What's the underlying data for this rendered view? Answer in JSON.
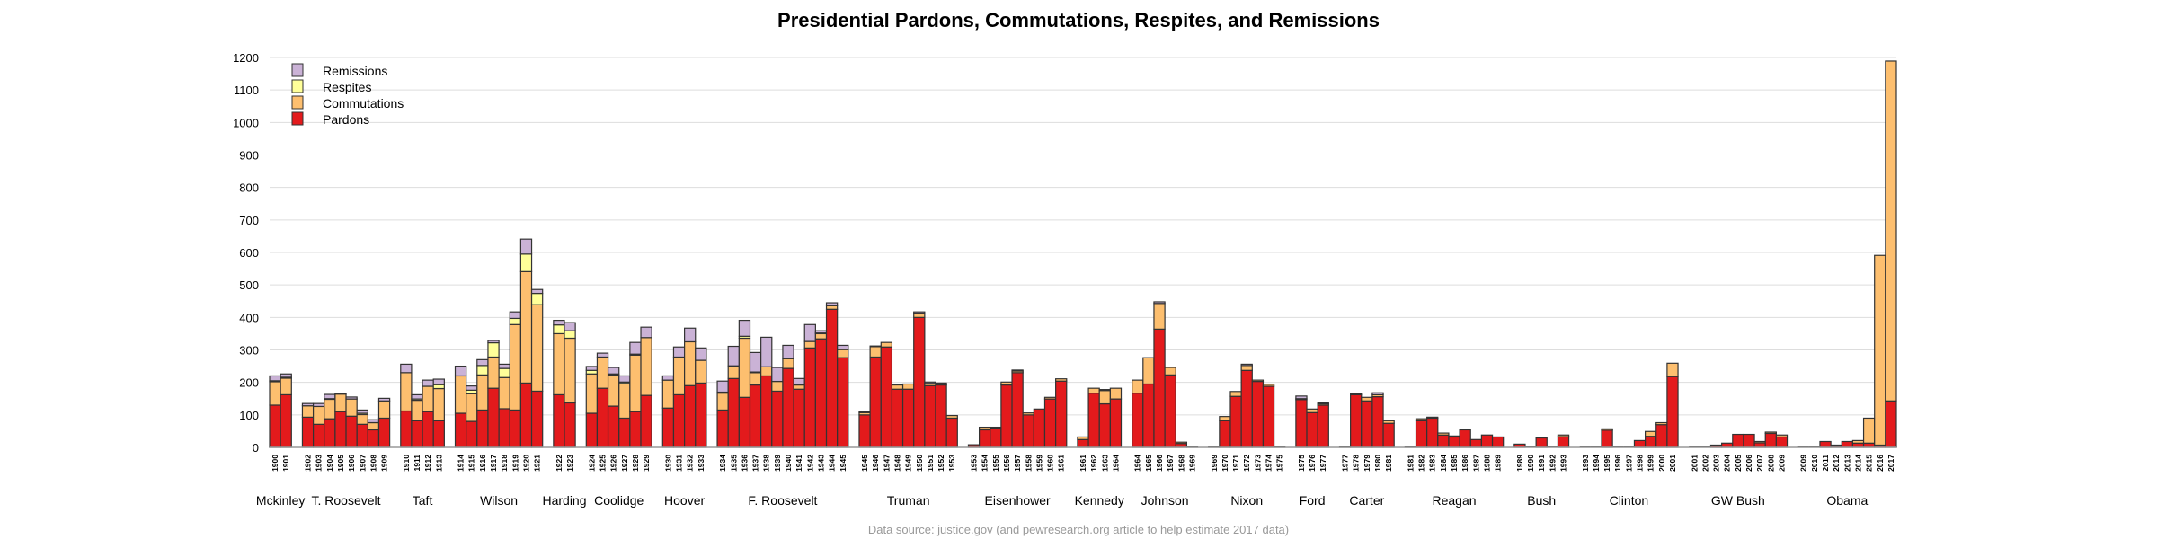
{
  "chart_data": {
    "type": "bar",
    "stacked": true,
    "title": "Presidential Pardons, Commutations, Respites, and Remissions",
    "source": "Data source: justice.gov (and pewresearch.org article to help estimate 2017 data)",
    "ylim": [
      0,
      1200
    ],
    "yticks": [
      0,
      100,
      200,
      300,
      400,
      500,
      600,
      700,
      800,
      900,
      1000,
      1100,
      1200
    ],
    "grid": true,
    "legend_position": "top-left",
    "legend": [
      "Remissions",
      "Respites",
      "Commutations",
      "Pardons"
    ],
    "colors": {
      "Pardons": "#e31a1c",
      "Commutations": "#fdbf6f",
      "Respites": "#ffff99",
      "Remissions": "#cab2d6",
      "outline": "#333333",
      "grid": "#dddddd"
    },
    "groups": [
      {
        "name": "Mckinley",
        "years": [
          "1900",
          "1901"
        ],
        "pardons": [
          130,
          162
        ],
        "commutations": [
          72,
          51
        ],
        "respites": [
          3,
          3
        ],
        "remissions": [
          15,
          10
        ]
      },
      {
        "name": "T. Roosevelt",
        "years": [
          "1902",
          "1903",
          "1904",
          "1905",
          "1906",
          "1907",
          "1908",
          "1909"
        ],
        "pardons": [
          93,
          71,
          88,
          110,
          96,
          71,
          54,
          90
        ],
        "commutations": [
          35,
          55,
          60,
          54,
          53,
          30,
          22,
          53
        ],
        "respites": [
          0,
          0,
          2,
          0,
          0,
          4,
          0,
          0
        ],
        "remissions": [
          7,
          9,
          13,
          2,
          6,
          10,
          9,
          8
        ]
      },
      {
        "name": "Taft",
        "years": [
          "1910",
          "1911",
          "1912",
          "1913"
        ],
        "pardons": [
          112,
          82,
          110,
          82
        ],
        "commutations": [
          118,
          63,
          78,
          99
        ],
        "respites": [
          0,
          4,
          0,
          12
        ],
        "remissions": [
          26,
          13,
          19,
          17
        ]
      },
      {
        "name": "Wilson",
        "years": [
          "1914",
          "1915",
          "1916",
          "1917",
          "1918",
          "1919",
          "1920",
          "1921"
        ],
        "pardons": [
          105,
          80,
          115,
          182,
          119,
          115,
          198,
          173
        ],
        "commutations": [
          115,
          85,
          108,
          96,
          96,
          263,
          343,
          266
        ],
        "respites": [
          0,
          11,
          29,
          44,
          28,
          19,
          54,
          35
        ],
        "remissions": [
          30,
          13,
          18,
          7,
          13,
          20,
          46,
          12
        ]
      },
      {
        "name": "Harding",
        "years": [
          "1922",
          "1923"
        ],
        "pardons": [
          162,
          137
        ],
        "commutations": [
          188,
          199
        ],
        "respites": [
          27,
          23
        ],
        "remissions": [
          14,
          25
        ]
      },
      {
        "name": "Coolidge",
        "years": [
          "1924",
          "1925",
          "1926",
          "1927",
          "1928",
          "1929"
        ],
        "pardons": [
          105,
          182,
          127,
          90,
          110,
          160
        ],
        "commutations": [
          121,
          96,
          96,
          107,
          174,
          178
        ],
        "respites": [
          11,
          0,
          3,
          4,
          3,
          0
        ],
        "remissions": [
          12,
          12,
          20,
          19,
          36,
          32
        ]
      },
      {
        "name": "Hoover",
        "years": [
          "1930",
          "1931",
          "1932",
          "1933"
        ],
        "pardons": [
          121,
          162,
          190,
          198
        ],
        "commutations": [
          86,
          116,
          135,
          70
        ],
        "respites": [
          0,
          0,
          0,
          0
        ],
        "remissions": [
          13,
          31,
          42,
          38
        ]
      },
      {
        "name": "F. Roosevelt",
        "years": [
          "1934",
          "1935",
          "1936",
          "1937",
          "1938",
          "1939",
          "1940",
          "1941",
          "1942",
          "1943",
          "1944",
          "1945"
        ],
        "pardons": [
          115,
          212,
          154,
          192,
          220,
          173,
          243,
          179,
          306,
          334,
          425,
          276
        ],
        "commutations": [
          52,
          37,
          182,
          38,
          28,
          30,
          30,
          13,
          20,
          16,
          11,
          25
        ],
        "respites": [
          3,
          2,
          6,
          2,
          0,
          0,
          0,
          0,
          0,
          2,
          0,
          0
        ],
        "remissions": [
          34,
          60,
          49,
          60,
          91,
          43,
          41,
          20,
          52,
          7,
          9,
          13
        ]
      },
      {
        "name": "Truman",
        "years": [
          "1945",
          "1946",
          "1947",
          "1948",
          "1949",
          "1950",
          "1951",
          "1952",
          "1953"
        ],
        "pardons": [
          100,
          278,
          309,
          179,
          179,
          400,
          190,
          192,
          90
        ],
        "commutations": [
          7,
          32,
          14,
          13,
          16,
          13,
          7,
          6,
          8
        ],
        "respites": [
          0,
          0,
          0,
          0,
          0,
          0,
          0,
          0,
          0
        ],
        "remissions": [
          3,
          2,
          0,
          0,
          0,
          4,
          4,
          0,
          0
        ]
      },
      {
        "name": "Eisenhower",
        "years": [
          "1953",
          "1954",
          "1955",
          "1956",
          "1957",
          "1958",
          "1959",
          "1960",
          "1961"
        ],
        "pardons": [
          8,
          54,
          59,
          192,
          230,
          100,
          118,
          149,
          204
        ],
        "commutations": [
          0,
          8,
          3,
          9,
          5,
          6,
          0,
          5,
          7
        ],
        "respites": [
          0,
          0,
          0,
          0,
          0,
          0,
          0,
          0,
          0
        ],
        "remissions": [
          0,
          0,
          0,
          0,
          3,
          0,
          0,
          0,
          0
        ]
      },
      {
        "name": "Kennedy",
        "years": [
          "1961",
          "1962",
          "1963",
          "1964"
        ],
        "pardons": [
          24,
          167,
          134,
          149
        ],
        "commutations": [
          8,
          15,
          41,
          33
        ],
        "respites": [
          0,
          0,
          0,
          0
        ],
        "remissions": [
          0,
          0,
          3,
          0
        ]
      },
      {
        "name": "Johnson",
        "years": [
          "1964",
          "1965",
          "1966",
          "1967",
          "1968",
          "1969"
        ],
        "pardons": [
          167,
          195,
          364,
          223,
          12,
          2
        ],
        "commutations": [
          40,
          81,
          79,
          23,
          4,
          0
        ],
        "respites": [
          0,
          0,
          0,
          0,
          0,
          0
        ],
        "remissions": [
          0,
          0,
          5,
          0,
          0,
          0
        ]
      },
      {
        "name": "Nixon",
        "years": [
          "1969",
          "1970",
          "1971",
          "1972",
          "1973",
          "1974",
          "1975"
        ],
        "pardons": [
          2,
          82,
          157,
          237,
          203,
          188,
          2
        ],
        "commutations": [
          0,
          13,
          15,
          15,
          4,
          6,
          0
        ],
        "respites": [
          0,
          0,
          0,
          0,
          0,
          0,
          0
        ],
        "remissions": [
          0,
          0,
          0,
          4,
          0,
          0,
          0
        ]
      },
      {
        "name": "Ford",
        "years": [
          "1975",
          "1976",
          "1977"
        ],
        "pardons": [
          147,
          107,
          130
        ],
        "commutations": [
          3,
          11,
          4
        ],
        "respites": [
          0,
          0,
          0
        ],
        "remissions": [
          8,
          0,
          3
        ]
      },
      {
        "name": "Carter",
        "years": [
          "1977",
          "1978",
          "1979",
          "1980",
          "1981"
        ],
        "pardons": [
          2,
          162,
          143,
          156,
          74
        ],
        "commutations": [
          0,
          3,
          11,
          6,
          8
        ],
        "respites": [
          0,
          0,
          0,
          0,
          0
        ],
        "remissions": [
          0,
          0,
          0,
          6,
          0
        ]
      },
      {
        "name": "Reagan",
        "years": [
          "1981",
          "1982",
          "1983",
          "1984",
          "1985",
          "1986",
          "1987",
          "1988",
          "1989"
        ],
        "pardons": [
          2,
          82,
          90,
          38,
          32,
          54,
          24,
          38,
          32
        ],
        "commutations": [
          0,
          6,
          3,
          6,
          3,
          0,
          0,
          0,
          0
        ],
        "respites": [
          0,
          0,
          0,
          0,
          0,
          0,
          0,
          0,
          0
        ],
        "remissions": [
          0,
          0,
          0,
          0,
          0,
          0,
          0,
          0,
          0
        ]
      },
      {
        "name": "Bush",
        "years": [
          "1989",
          "1990",
          "1991",
          "1992",
          "1993"
        ],
        "pardons": [
          10,
          0,
          29,
          0,
          33
        ],
        "commutations": [
          0,
          0,
          0,
          0,
          5
        ],
        "respites": [
          0,
          0,
          0,
          0,
          0
        ],
        "remissions": [
          0,
          0,
          0,
          0,
          0
        ]
      },
      {
        "name": "Clinton",
        "years": [
          "1993",
          "1994",
          "1995",
          "1996",
          "1997",
          "1998",
          "1999",
          "2000",
          "2001"
        ],
        "pardons": [
          0,
          0,
          53,
          0,
          0,
          21,
          34,
          70,
          218
        ],
        "commutations": [
          0,
          0,
          4,
          0,
          0,
          0,
          15,
          6,
          41
        ],
        "respites": [
          0,
          0,
          0,
          0,
          0,
          0,
          0,
          0,
          0
        ],
        "remissions": [
          0,
          0,
          0,
          0,
          0,
          0,
          0,
          0,
          0
        ]
      },
      {
        "name": "GW Bush",
        "years": [
          "2001",
          "2002",
          "2003",
          "2004",
          "2005",
          "2006",
          "2007",
          "2008",
          "2009"
        ],
        "pardons": [
          0,
          0,
          7,
          13,
          40,
          40,
          14,
          43,
          32
        ],
        "commutations": [
          0,
          0,
          0,
          0,
          0,
          0,
          4,
          4,
          6
        ],
        "respites": [
          0,
          0,
          0,
          0,
          0,
          0,
          0,
          0,
          0
        ],
        "remissions": [
          0,
          0,
          0,
          0,
          0,
          0,
          0,
          0,
          0
        ]
      },
      {
        "name": "Obama",
        "years": [
          "2009",
          "2010",
          "2011",
          "2012",
          "2013",
          "2014",
          "2015",
          "2016",
          "2017"
        ],
        "pardons": [
          0,
          0,
          18,
          4,
          18,
          13,
          13,
          7,
          143
        ],
        "commutations": [
          0,
          0,
          0,
          3,
          0,
          8,
          77,
          584,
          1046
        ],
        "respites": [
          0,
          0,
          0,
          0,
          0,
          0,
          0,
          0,
          0
        ],
        "remissions": [
          0,
          0,
          0,
          0,
          0,
          0,
          0,
          0,
          0
        ]
      }
    ]
  }
}
